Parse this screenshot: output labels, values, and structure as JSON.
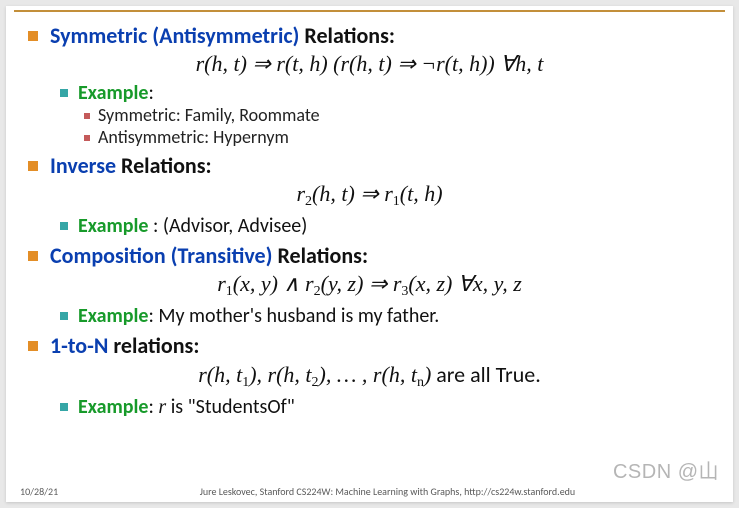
{
  "colors": {
    "bullet_l1": "#e38e27",
    "bullet_l2": "#35a6a6",
    "bullet_l3": "#c45a5a",
    "heading_blue": "#0a3fb0",
    "example_green": "#179a2a",
    "topline": "#c38f3a",
    "text": "#111111",
    "footer": "#5a5a5a",
    "watermark": "rgba(120,120,120,0.55)",
    "background": "#ffffff"
  },
  "typography": {
    "body_font": "Calibri, Arial, sans-serif",
    "math_font": "Cambria Math, Times New Roman, serif",
    "heading_size_pt": 17,
    "example_size_pt": 15,
    "sub_size_pt": 14,
    "formula_size_pt": 17,
    "footer_size_pt": 8
  },
  "sec1": {
    "head_blue": "Symmetric (Antisymmetric)",
    "head_rest": " Relations:",
    "formula_plain": "r(h, t) ⇒ r(t, h)   (r(h, t) ⇒ ¬r(t, h))   ∀h, t",
    "example_label": "Example",
    "example_colon": ":",
    "sub1": "Symmetric: Family, Roommate",
    "sub2": "Antisymmetric: Hypernym"
  },
  "sec2": {
    "head_blue": "Inverse",
    "head_rest": " Relations:",
    "formula_pre": "r",
    "formula_s1": "2",
    "formula_mid1": "(h, t) ⇒ r",
    "formula_s2": "1",
    "formula_post": "(t, h)",
    "example_label": "Example",
    "example_rest": " : (Advisor, Advisee)"
  },
  "sec3": {
    "head_blue": "Composition (Transitive)",
    "head_rest": " Relations:",
    "formula_p1": "r",
    "formula_s1": "1",
    "formula_p2": "(x, y) ∧ r",
    "formula_s2": "2",
    "formula_p3": "(y, z) ⇒ r",
    "formula_s3": "3",
    "formula_p4": "(x, z)   ∀x, y, z",
    "example_label": "Example",
    "example_rest": ": My mother's husband is my father."
  },
  "sec4": {
    "head_blue": "1-to-N",
    "head_rest": " relations:",
    "formula_p1": "r(h, t",
    "formula_s1": "1",
    "formula_p2": "), r(h, t",
    "formula_s2": "2",
    "formula_p3": "), … , r(h, t",
    "formula_s3": "n",
    "formula_p4": ")",
    "formula_tail": " are all True.",
    "example_label": "Example",
    "example_rest_a": ": ",
    "example_r": "r",
    "example_rest_b": " is \"StudentsOf\""
  },
  "footer": {
    "date": "10/28/21",
    "credit": "Jure Leskovec, Stanford CS224W: Machine Learning with Graphs, http://cs224w.stanford.edu"
  },
  "watermark": "CSDN @山"
}
